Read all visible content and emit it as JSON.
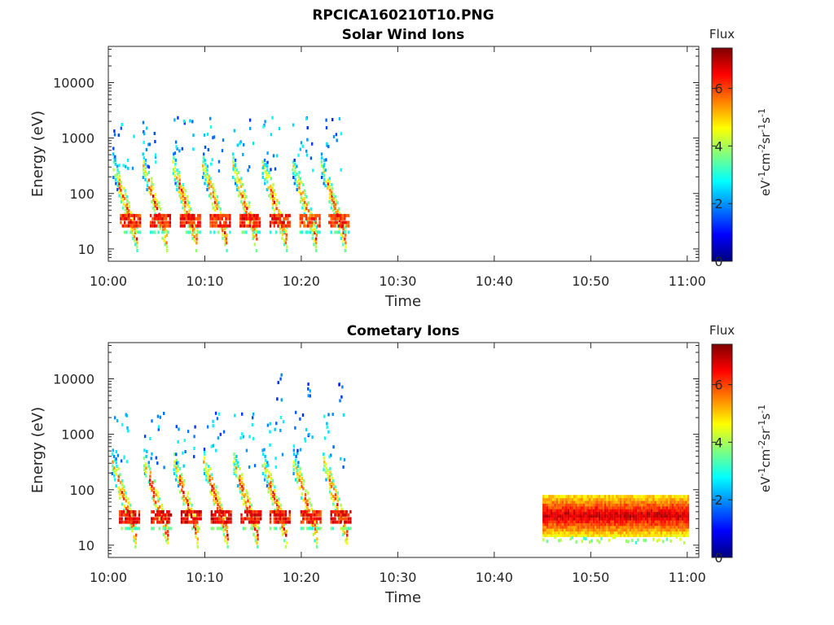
{
  "figure_title": "RPCICA160210T10.PNG",
  "colors": {
    "colormap": [
      "#00007f",
      "#0000ff",
      "#007fff",
      "#00ffff",
      "#7fff7f",
      "#ffff00",
      "#ff7f00",
      "#ff0000",
      "#7f0000"
    ]
  },
  "chart_data": [
    {
      "type": "heatmap",
      "title": "Solar Wind Ions",
      "xlabel": "Time",
      "ylabel": "Energy (eV)",
      "y_scale": "log",
      "xlim": [
        "10:00",
        "11:01"
      ],
      "ylim": [
        6,
        45000
      ],
      "x_ticks": [
        "10:00",
        "10:10",
        "10:20",
        "10:30",
        "10:40",
        "10:50",
        "11:00"
      ],
      "y_ticks": [
        "10",
        "100",
        "1000",
        "10000"
      ],
      "colorbar": {
        "title": "Flux",
        "label": "eV-1cm-2sr-1s-1",
        "ticks": [
          "0",
          "2",
          "4",
          "6"
        ],
        "range": [
          0,
          7.4
        ]
      },
      "bursts": [
        {
          "start_min": 0.4,
          "peak_log_flux": 6.8
        },
        {
          "start_min": 3.5,
          "peak_log_flux": 6.9
        },
        {
          "start_min": 6.6,
          "peak_log_flux": 6.9
        },
        {
          "start_min": 9.7,
          "peak_log_flux": 6.8
        },
        {
          "start_min": 12.8,
          "peak_log_flux": 6.9
        },
        {
          "start_min": 15.9,
          "peak_log_flux": 6.9
        },
        {
          "start_min": 19.0,
          "peak_log_flux": 6.6
        },
        {
          "start_min": 22.0,
          "peak_log_flux": 6.7
        }
      ],
      "dense_band": null
    },
    {
      "type": "heatmap",
      "title": "Cometary Ions",
      "xlabel": "Time",
      "ylabel": "Energy (eV)",
      "y_scale": "log",
      "xlim": [
        "10:00",
        "11:01"
      ],
      "ylim": [
        6,
        45000
      ],
      "x_ticks": [
        "10:00",
        "10:10",
        "10:20",
        "10:30",
        "10:40",
        "10:50",
        "11:00"
      ],
      "y_ticks": [
        "10",
        "100",
        "1000",
        "10000"
      ],
      "colorbar": {
        "title": "Flux",
        "label": "eV-1cm-2sr-1s-1",
        "ticks": [
          "0",
          "2",
          "4",
          "6"
        ],
        "range": [
          0,
          7.4
        ]
      },
      "bursts": [
        {
          "start_min": 0.3,
          "peak_log_flux": 7.0
        },
        {
          "start_min": 3.6,
          "peak_log_flux": 7.1
        },
        {
          "start_min": 6.7,
          "peak_log_flux": 7.1
        },
        {
          "start_min": 9.8,
          "peak_log_flux": 7.1
        },
        {
          "start_min": 12.9,
          "peak_log_flux": 7.1
        },
        {
          "start_min": 15.9,
          "peak_log_flux": 7.0
        },
        {
          "start_min": 19.1,
          "peak_log_flux": 6.9
        },
        {
          "start_min": 22.2,
          "peak_log_flux": 7.0
        }
      ],
      "dense_band": {
        "start": "10:45",
        "end": "11:00",
        "energy_range_eV": [
          15,
          80
        ],
        "peak_log_flux": 7.3
      }
    }
  ]
}
